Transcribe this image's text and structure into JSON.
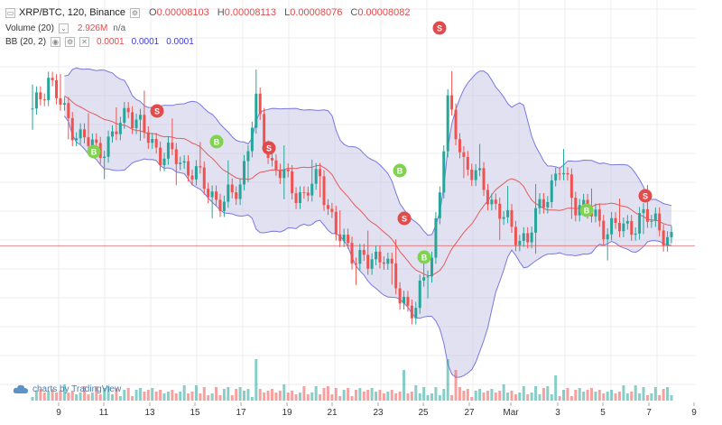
{
  "header": {
    "symbol": "XRP/BTC, 120, Binance",
    "ohlc": [
      {
        "k": "O",
        "v": "0.00008103"
      },
      {
        "k": "H",
        "v": "0.00008113"
      },
      {
        "k": "L",
        "v": "0.00008076"
      },
      {
        "k": "C",
        "v": "0.00008082"
      }
    ]
  },
  "volume_legend": {
    "label": "Volume (20)",
    "value": "2.926M",
    "ma": "n/a"
  },
  "bb_legend": {
    "label": "BB (20, 2)",
    "basis": "0.0001",
    "upper": "0.0001",
    "lower": "0.0001"
  },
  "watermark": "charts by TradingView",
  "x_labels": [
    "9",
    "11",
    "13",
    "15",
    "17",
    "19",
    "21",
    "23",
    "25",
    "27",
    "Mar",
    "3",
    "5",
    "7",
    "9"
  ],
  "signals": [
    {
      "label": "B",
      "color": "#7fd34e"
    },
    {
      "label": "S",
      "color": "#e24b4b"
    },
    {
      "label": "B",
      "color": "#7fd34e"
    },
    {
      "label": "S",
      "color": "#e24b4b"
    },
    {
      "label": "B",
      "color": "#7fd34e"
    },
    {
      "label": "S",
      "color": "#e24b4b"
    },
    {
      "label": "B",
      "color": "#7fd34e"
    },
    {
      "label": "S",
      "color": "#e24b4b"
    },
    {
      "label": "B",
      "color": "#7fd34e"
    },
    {
      "label": "S",
      "color": "#e24b4b"
    }
  ],
  "colors": {
    "up": "#26a69a",
    "down": "#ef5350",
    "band_fill": "#c9c9e6",
    "band_line": "#7878e0",
    "basis": "#e25c5c",
    "price_line": "#e05a5a",
    "grid": "#ececec"
  },
  "chart_data": {
    "type": "candlestick",
    "x_axis_labels": [
      "9",
      "11",
      "13",
      "15",
      "17",
      "19",
      "21",
      "23",
      "25",
      "27",
      "Mar",
      "3",
      "5",
      "7",
      "9"
    ],
    "last_close": 8.082e-05,
    "approx_close_path": [
      [
        0,
        8.95e-05
      ],
      [
        4,
        9.2e-05
      ],
      [
        8,
        8.95e-05
      ],
      [
        12,
        8.8e-05
      ],
      [
        16,
        8.72e-05
      ],
      [
        20,
        8.78e-05
      ],
      [
        24,
        9e-05
      ],
      [
        28,
        8.82e-05
      ],
      [
        32,
        8.7e-05
      ],
      [
        36,
        8.66e-05
      ],
      [
        40,
        8.58e-05
      ],
      [
        44,
        8.45e-05
      ],
      [
        48,
        8.35e-05
      ],
      [
        52,
        8.5e-05
      ],
      [
        56,
        9e-05
      ],
      [
        60,
        8.62e-05
      ],
      [
        64,
        8.5e-05
      ],
      [
        68,
        8.4e-05
      ],
      [
        72,
        8.55e-05
      ],
      [
        76,
        8.15e-05
      ],
      [
        80,
        8.05e-05
      ],
      [
        84,
        7.95e-05
      ],
      [
        88,
        8.05e-05
      ],
      [
        92,
        7.72e-05
      ],
      [
        96,
        7.68e-05
      ],
      [
        100,
        8e-05
      ],
      [
        104,
        9e-05
      ],
      [
        108,
        8.65e-05
      ],
      [
        112,
        8.5e-05
      ],
      [
        116,
        8.35e-05
      ],
      [
        120,
        8.18e-05
      ],
      [
        124,
        8.12e-05
      ],
      [
        128,
        8.4e-05
      ],
      [
        132,
        8.58e-05
      ],
      [
        136,
        8.38e-05
      ],
      [
        140,
        8.28e-05
      ],
      [
        144,
        8.2e-05
      ],
      [
        148,
        8.2e-05
      ],
      [
        152,
        8.25e-05
      ],
      [
        156,
        8.26e-05
      ],
      [
        160,
        8.08e-05
      ]
    ]
  }
}
